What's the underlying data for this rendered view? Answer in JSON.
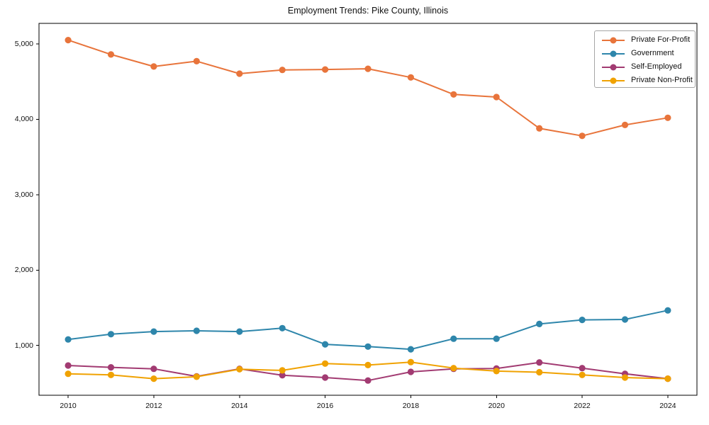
{
  "title": "Employment Trends: Pike County, Illinois",
  "chart_data": {
    "type": "line",
    "title": "Employment Trends: Pike County, Illinois",
    "x": [
      2010,
      2011,
      2012,
      2013,
      2014,
      2015,
      2016,
      2017,
      2018,
      2019,
      2020,
      2021,
      2022,
      2023,
      2024
    ],
    "series": [
      {
        "name": "Private For-Profit",
        "color": "#e8743b",
        "values": [
          5050,
          4860,
          4700,
          4770,
          4605,
          4655,
          4660,
          4670,
          4555,
          4330,
          4295,
          3880,
          3780,
          3925,
          4020
        ]
      },
      {
        "name": "Government",
        "color": "#2e86ab",
        "values": [
          1080,
          1150,
          1185,
          1195,
          1185,
          1230,
          1015,
          985,
          950,
          1090,
          1090,
          1285,
          1340,
          1345,
          1465
        ]
      },
      {
        "name": "Self-Employed",
        "color": "#a23b72",
        "values": [
          735,
          710,
          690,
          590,
          690,
          605,
          575,
          535,
          650,
          690,
          695,
          775,
          700,
          625,
          560
        ]
      },
      {
        "name": "Private Non-Profit",
        "color": "#f0a202",
        "values": [
          625,
          610,
          560,
          585,
          685,
          670,
          760,
          740,
          780,
          700,
          660,
          645,
          610,
          575,
          560
        ]
      }
    ],
    "xlabel": "",
    "ylabel": "",
    "xticks": {
      "values": [
        2010,
        2012,
        2014,
        2016,
        2018,
        2020,
        2022,
        2024
      ],
      "labels": [
        "2010",
        "2012",
        "2014",
        "2016",
        "2018",
        "2020",
        "2022",
        "2024"
      ]
    },
    "yticks": {
      "values": [
        1000,
        2000,
        3000,
        4000,
        5000
      ],
      "labels": [
        "1,000",
        "2,000",
        "3,000",
        "4,000",
        "5,000"
      ]
    },
    "xlim": [
      2009.32,
      2024.68
    ],
    "ylim": [
      340,
      5272
    ],
    "grid": false,
    "legend_position": "upper right",
    "marker": "circle",
    "marker_radius": 4.6,
    "line_width": 2
  },
  "style": {
    "background": "#ffffff",
    "axis_color": "#000000",
    "text_color": "#111111",
    "legend_border": "#a6a6a6"
  }
}
